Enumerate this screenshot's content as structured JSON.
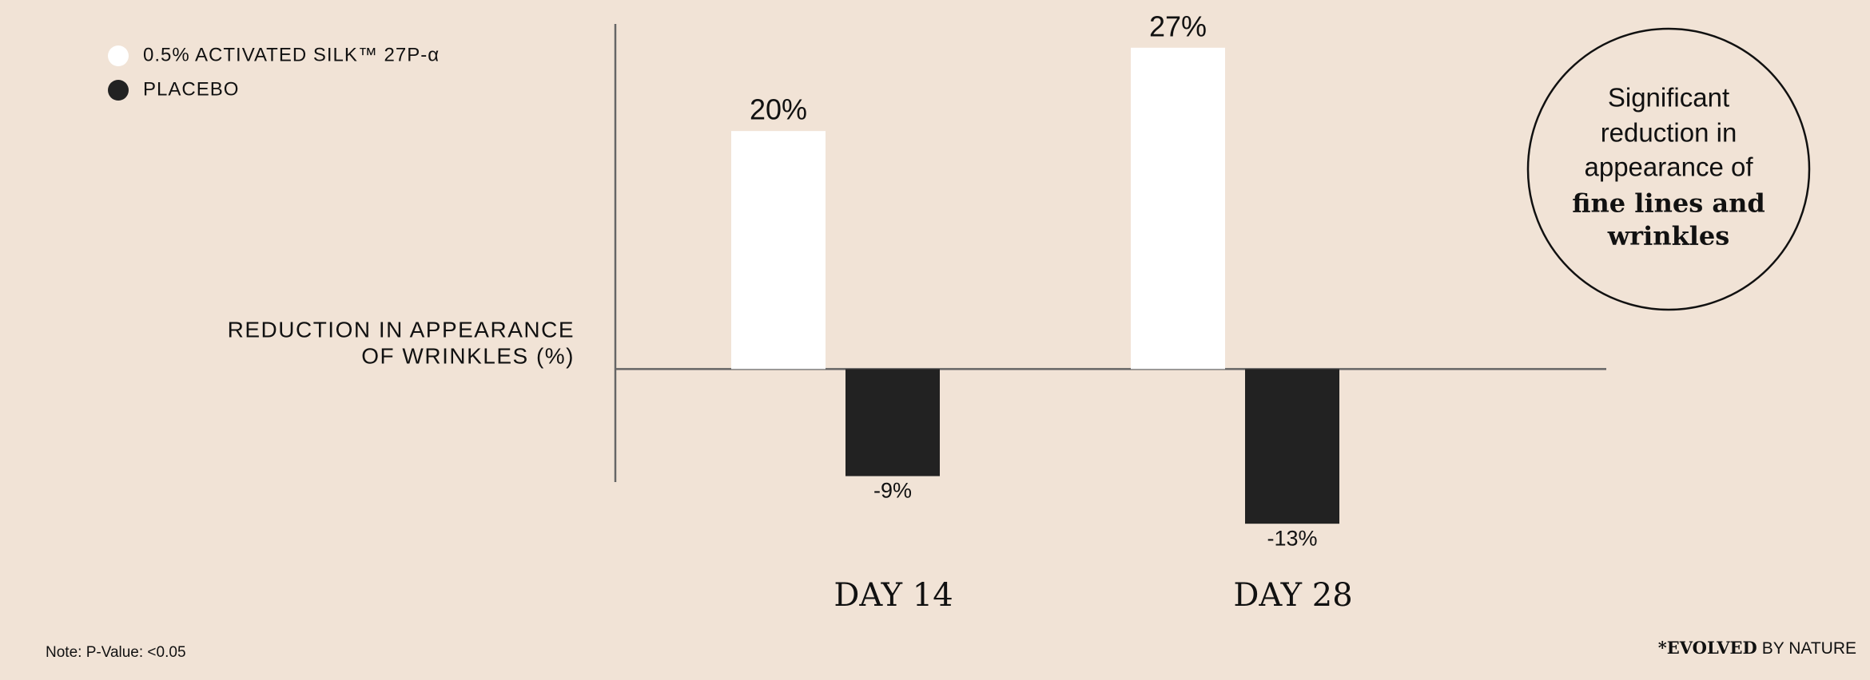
{
  "chart_data": {
    "type": "bar",
    "y_label": [
      "REDUCTION IN APPEARANCE",
      "OF WRINKLES (%)"
    ],
    "categories": [
      "DAY 14",
      "DAY 28"
    ],
    "series": [
      {
        "name": "0.5% ACTIVATED SILK™ 27P-α",
        "color": "#ffffff",
        "values": [
          20,
          27
        ],
        "value_labels": [
          "20%",
          "27%"
        ]
      },
      {
        "name": "PLACEBO",
        "color": "#222222",
        "values": [
          -9,
          -13
        ],
        "value_labels": [
          "-9%",
          "-13%"
        ]
      }
    ],
    "ylim": [
      -9.5,
      29
    ]
  },
  "callout": {
    "text": [
      "Significant",
      "reduction in",
      "appearance of"
    ],
    "emphasis": [
      "fine lines and",
      "wrinkles"
    ]
  },
  "note": "Note: P-Value: <0.05",
  "logo": {
    "mark": "*",
    "bold": "EVOLVED",
    "rest": "BY NATURE"
  }
}
